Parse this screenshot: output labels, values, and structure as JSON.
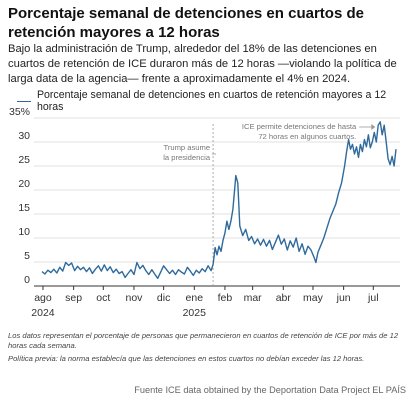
{
  "header": {
    "title": "Porcentaje semanal de detenciones en cuartos de retención mayores a 12 horas",
    "subtitle": "Bajo la administración de Trump, alrededor del 18% de las detenciones en cuartos de retención de ICE duraron más de 12 horas —violando la política de larga data de la agencia— frente a aproximadamente el 4% en 2024."
  },
  "notes": {
    "line1": "Los datos representan el porcentaje de personas que permanecieron en cuartos de retención de ICE por más de 12 horas cada semana.",
    "line2": "Política previa: la norma establecía que las detenciones en estos cuartos no debían exceder las 12 horas."
  },
  "source": "Fuente ICE data obtained by the Deportation Data Project EL PAÍS",
  "colors": {
    "line": "#2e6a9c",
    "grid": "#d9d9d9",
    "axis": "#333333"
  },
  "chart_data": {
    "type": "line",
    "title": "",
    "xlabel": "",
    "ylabel": "",
    "legend": "top-left",
    "grid": true,
    "ylim": [
      0,
      35
    ],
    "y_ticks": [
      0,
      5,
      10,
      15,
      20,
      25,
      30,
      35
    ],
    "y_tick_labels": [
      "0",
      "5",
      "10",
      "15",
      "20",
      "25",
      "30",
      "35%"
    ],
    "x_range": [
      "2024-07-29",
      "2025-07-28"
    ],
    "x_ticks": [
      {
        "date": "2024-08-01",
        "label": "ago"
      },
      {
        "date": "2024-09-01",
        "label": "sep"
      },
      {
        "date": "2024-10-01",
        "label": "oct"
      },
      {
        "date": "2024-11-01",
        "label": "nov"
      },
      {
        "date": "2024-12-01",
        "label": "dic"
      },
      {
        "date": "2025-01-01",
        "label": "ene"
      },
      {
        "date": "2025-02-01",
        "label": "feb"
      },
      {
        "date": "2025-03-01",
        "label": "mar"
      },
      {
        "date": "2025-04-01",
        "label": "abr"
      },
      {
        "date": "2025-05-01",
        "label": "may"
      },
      {
        "date": "2025-06-01",
        "label": "jun"
      },
      {
        "date": "2025-07-01",
        "label": "jul"
      }
    ],
    "year_labels": [
      {
        "date": "2024-08-01",
        "label": "2024"
      },
      {
        "date": "2025-01-01",
        "label": "2025"
      }
    ],
    "series": [
      {
        "name": "Porcentaje semanal de detenciones en cuartos de retención mayores a 12 horas",
        "points": [
          [
            "2024-07-31",
            3.0
          ],
          [
            "2024-08-03",
            2.5
          ],
          [
            "2024-08-06",
            3.3
          ],
          [
            "2024-08-09",
            2.8
          ],
          [
            "2024-08-12",
            3.5
          ],
          [
            "2024-08-15",
            2.7
          ],
          [
            "2024-08-18",
            3.9
          ],
          [
            "2024-08-21",
            3.1
          ],
          [
            "2024-08-24",
            4.9
          ],
          [
            "2024-08-27",
            4.3
          ],
          [
            "2024-08-30",
            4.8
          ],
          [
            "2024-09-02",
            3.2
          ],
          [
            "2024-09-05",
            4.1
          ],
          [
            "2024-09-08",
            3.4
          ],
          [
            "2024-09-11",
            3.9
          ],
          [
            "2024-09-14",
            3.0
          ],
          [
            "2024-09-17",
            3.8
          ],
          [
            "2024-09-20",
            2.6
          ],
          [
            "2024-09-23",
            3.5
          ],
          [
            "2024-09-26",
            4.2
          ],
          [
            "2024-09-29",
            3.1
          ],
          [
            "2024-10-02",
            4.4
          ],
          [
            "2024-10-05",
            3.2
          ],
          [
            "2024-10-08",
            4.0
          ],
          [
            "2024-10-11",
            2.8
          ],
          [
            "2024-10-14",
            3.5
          ],
          [
            "2024-10-17",
            2.6
          ],
          [
            "2024-10-20",
            3.0
          ],
          [
            "2024-10-23",
            1.8
          ],
          [
            "2024-10-26",
            2.6
          ],
          [
            "2024-10-29",
            3.4
          ],
          [
            "2024-11-01",
            2.4
          ],
          [
            "2024-11-04",
            4.9
          ],
          [
            "2024-11-07",
            3.6
          ],
          [
            "2024-11-10",
            4.3
          ],
          [
            "2024-11-13",
            3.2
          ],
          [
            "2024-11-16",
            2.4
          ],
          [
            "2024-11-19",
            3.4
          ],
          [
            "2024-11-22",
            2.5
          ],
          [
            "2024-11-25",
            1.6
          ],
          [
            "2024-11-28",
            2.9
          ],
          [
            "2024-12-01",
            4.2
          ],
          [
            "2024-12-04",
            3.4
          ],
          [
            "2024-12-07",
            2.6
          ],
          [
            "2024-12-10",
            3.3
          ],
          [
            "2024-12-13",
            2.4
          ],
          [
            "2024-12-16",
            3.4
          ],
          [
            "2024-12-19",
            2.9
          ],
          [
            "2024-12-22",
            2.5
          ],
          [
            "2024-12-25",
            3.9
          ],
          [
            "2024-12-28",
            3.1
          ],
          [
            "2024-12-31",
            2.2
          ],
          [
            "2025-01-03",
            3.3
          ],
          [
            "2025-01-06",
            2.7
          ],
          [
            "2025-01-09",
            3.6
          ],
          [
            "2025-01-12",
            3.0
          ],
          [
            "2025-01-15",
            4.2
          ],
          [
            "2025-01-18",
            3.2
          ],
          [
            "2025-01-20",
            4.5
          ],
          [
            "2025-01-22",
            8.0
          ],
          [
            "2025-01-24",
            6.5
          ],
          [
            "2025-01-26",
            8.3
          ],
          [
            "2025-01-28",
            7.2
          ],
          [
            "2025-01-30",
            9.5
          ],
          [
            "2025-02-01",
            11.0
          ],
          [
            "2025-02-03",
            13.5
          ],
          [
            "2025-02-05",
            11.8
          ],
          [
            "2025-02-07",
            13.5
          ],
          [
            "2025-02-09",
            16.0
          ],
          [
            "2025-02-11",
            20.5
          ],
          [
            "2025-02-12",
            23.0
          ],
          [
            "2025-02-14",
            21.5
          ],
          [
            "2025-02-16",
            12.5
          ],
          [
            "2025-02-19",
            10.5
          ],
          [
            "2025-02-22",
            11.8
          ],
          [
            "2025-02-25",
            9.5
          ],
          [
            "2025-02-28",
            10.3
          ],
          [
            "2025-03-03",
            8.8
          ],
          [
            "2025-03-06",
            9.8
          ],
          [
            "2025-03-09",
            8.5
          ],
          [
            "2025-03-12",
            9.7
          ],
          [
            "2025-03-15",
            8.3
          ],
          [
            "2025-03-18",
            9.5
          ],
          [
            "2025-03-21",
            7.6
          ],
          [
            "2025-03-24",
            9.1
          ],
          [
            "2025-03-27",
            10.6
          ],
          [
            "2025-03-30",
            8.7
          ],
          [
            "2025-04-02",
            9.8
          ],
          [
            "2025-04-05",
            7.5
          ],
          [
            "2025-04-08",
            9.4
          ],
          [
            "2025-04-11",
            8.1
          ],
          [
            "2025-04-14",
            10.0
          ],
          [
            "2025-04-17",
            7.2
          ],
          [
            "2025-04-20",
            8.8
          ],
          [
            "2025-04-23",
            6.6
          ],
          [
            "2025-04-26",
            8.3
          ],
          [
            "2025-04-29",
            7.5
          ],
          [
            "2025-05-02",
            6.0
          ],
          [
            "2025-05-04",
            4.9
          ],
          [
            "2025-05-06",
            7.0
          ],
          [
            "2025-05-09",
            8.5
          ],
          [
            "2025-05-12",
            10.0
          ],
          [
            "2025-05-15",
            12.0
          ],
          [
            "2025-05-18",
            14.0
          ],
          [
            "2025-05-21",
            15.5
          ],
          [
            "2025-05-24",
            17.0
          ],
          [
            "2025-05-27",
            19.5
          ],
          [
            "2025-05-30",
            21.5
          ],
          [
            "2025-06-02",
            25.0
          ],
          [
            "2025-06-04",
            28.0
          ],
          [
            "2025-06-06",
            30.5
          ],
          [
            "2025-06-08",
            28.5
          ],
          [
            "2025-06-10",
            29.5
          ],
          [
            "2025-06-12",
            27.5
          ],
          [
            "2025-06-14",
            29.0
          ],
          [
            "2025-06-16",
            26.8
          ],
          [
            "2025-06-18",
            29.5
          ],
          [
            "2025-06-20",
            28.0
          ],
          [
            "2025-06-22",
            30.5
          ],
          [
            "2025-06-24",
            29.0
          ],
          [
            "2025-06-26",
            31.5
          ],
          [
            "2025-06-28",
            28.8
          ],
          [
            "2025-06-30",
            30.0
          ],
          [
            "2025-07-02",
            32.0
          ],
          [
            "2025-07-04",
            30.0
          ],
          [
            "2025-07-06",
            33.5
          ],
          [
            "2025-07-08",
            34.2
          ],
          [
            "2025-07-10",
            31.5
          ],
          [
            "2025-07-12",
            33.5
          ],
          [
            "2025-07-14",
            30.0
          ],
          [
            "2025-07-16",
            26.5
          ],
          [
            "2025-07-18",
            25.3
          ],
          [
            "2025-07-20",
            27.0
          ],
          [
            "2025-07-22",
            25.0
          ],
          [
            "2025-07-24",
            28.5
          ]
        ]
      }
    ],
    "annotations": [
      {
        "id": "trump",
        "date": "2025-01-20",
        "lines": [
          "Trump asume",
          "la presidencia"
        ]
      },
      {
        "id": "ice72",
        "date": "2025-07-03",
        "lines": [
          "ICE permite detenciones de hasta",
          "72 horas en algunos cuartos."
        ]
      }
    ]
  }
}
